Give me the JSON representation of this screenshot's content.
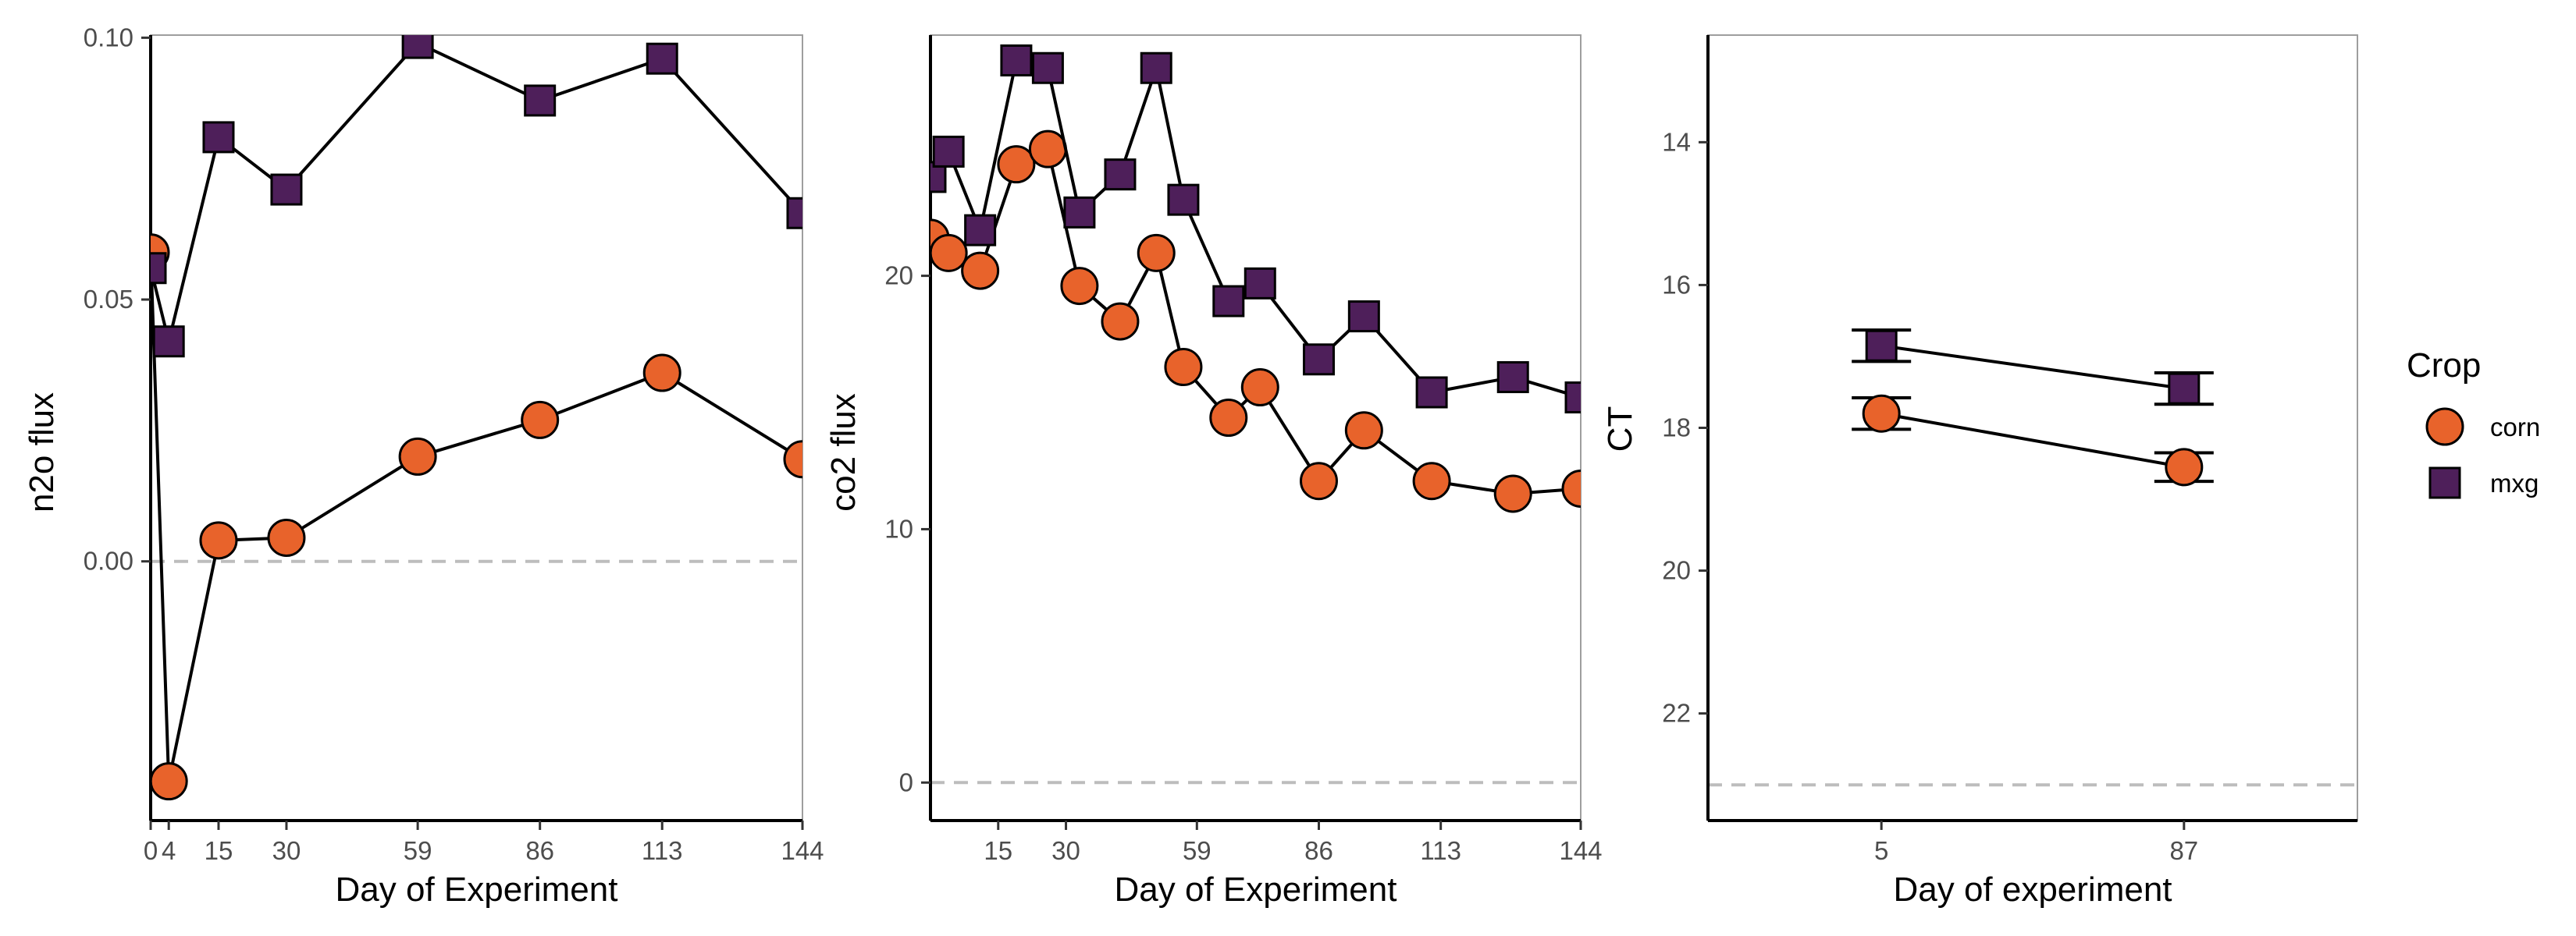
{
  "chart_data": [
    {
      "type": "line",
      "xlabel": "Day of Experiment",
      "ylabel": "n2o flux",
      "xlim": [
        0,
        144
      ],
      "ylim": [
        -0.0495,
        0.1005
      ],
      "x_ticks": [
        0,
        4,
        15,
        30,
        59,
        86,
        113,
        144
      ],
      "x_tick_labels": [
        "0",
        "4",
        "15",
        "30",
        "59",
        "86",
        "113",
        "144"
      ],
      "y_ticks": [
        0.0,
        0.05,
        0.1
      ],
      "y_tick_labels": [
        "0.00",
        "0.05",
        "0.10"
      ],
      "reference_line": 0,
      "series": [
        {
          "name": "corn",
          "x": [
            0,
            4,
            15,
            30,
            59,
            86,
            113,
            144
          ],
          "values": [
            0.059,
            -0.042,
            0.004,
            0.0045,
            0.02,
            0.027,
            0.036,
            0.0195
          ]
        },
        {
          "name": "mxg",
          "x": [
            0,
            4,
            15,
            30,
            59,
            86,
            113,
            144
          ],
          "values": [
            0.056,
            0.042,
            0.081,
            0.071,
            0.099,
            0.088,
            0.096,
            0.0665
          ]
        }
      ]
    },
    {
      "type": "line",
      "xlabel": "Day of Experiment",
      "ylabel": "co2 flux",
      "xlim": [
        0,
        144
      ],
      "ylim": [
        -1.5,
        29.5
      ],
      "x_ticks": [
        15,
        30,
        59,
        86,
        113,
        144
      ],
      "x_tick_labels": [
        "15",
        "30",
        "59",
        "86",
        "113",
        "144"
      ],
      "y_ticks": [
        0,
        10,
        20
      ],
      "y_tick_labels": [
        "0",
        "10",
        "20"
      ],
      "reference_line": 0,
      "series": [
        {
          "name": "corn",
          "x": [
            0,
            4,
            11,
            19,
            26,
            33,
            42,
            50,
            56,
            66,
            73,
            86,
            96,
            111,
            129,
            144
          ],
          "values": [
            21.5,
            20.9,
            20.2,
            24.4,
            25.0,
            19.6,
            18.2,
            20.9,
            16.4,
            14.4,
            15.6,
            11.9,
            13.9,
            11.9,
            11.4,
            11.6
          ]
        },
        {
          "name": "mxg",
          "x": [
            0,
            4,
            11,
            19,
            26,
            33,
            42,
            50,
            56,
            66,
            73,
            86,
            96,
            111,
            129,
            144
          ],
          "values": [
            23.9,
            24.9,
            21.8,
            28.5,
            28.2,
            22.5,
            24.0,
            28.2,
            23.0,
            19.0,
            19.7,
            16.7,
            18.4,
            15.4,
            16.0,
            15.2
          ]
        }
      ]
    },
    {
      "type": "line",
      "xlabel": "Day of experiment",
      "ylabel": "CT",
      "y_reversed": true,
      "xlim": [
        -42,
        134
      ],
      "ylim": [
        12.5,
        23.5
      ],
      "x_ticks": [
        5,
        87
      ],
      "x_tick_labels": [
        "5",
        "87"
      ],
      "y_ticks": [
        14,
        16,
        18,
        20,
        22
      ],
      "y_tick_labels": [
        "14",
        "16",
        "18",
        "20",
        "22"
      ],
      "reference_line": 23,
      "series": [
        {
          "name": "corn",
          "x": [
            5,
            87
          ],
          "values": [
            17.8,
            18.55
          ],
          "error": [
            0.22,
            0.2
          ]
        },
        {
          "name": "mxg",
          "x": [
            5,
            87
          ],
          "values": [
            16.85,
            17.45
          ],
          "error": [
            0.22,
            0.22
          ]
        }
      ]
    }
  ],
  "legend": {
    "title": "Crop",
    "items": [
      {
        "label": "corn",
        "shape": "circle",
        "color": "#E8632B"
      },
      {
        "label": "mxg",
        "shape": "square",
        "color": "#4E1F5A"
      }
    ],
    "placement": "right"
  },
  "colors": {
    "corn": "#E8632B",
    "mxg": "#4E1F5A",
    "line": "#000000",
    "reference": "#bdbdbd",
    "frame": "#9e9e9e"
  }
}
